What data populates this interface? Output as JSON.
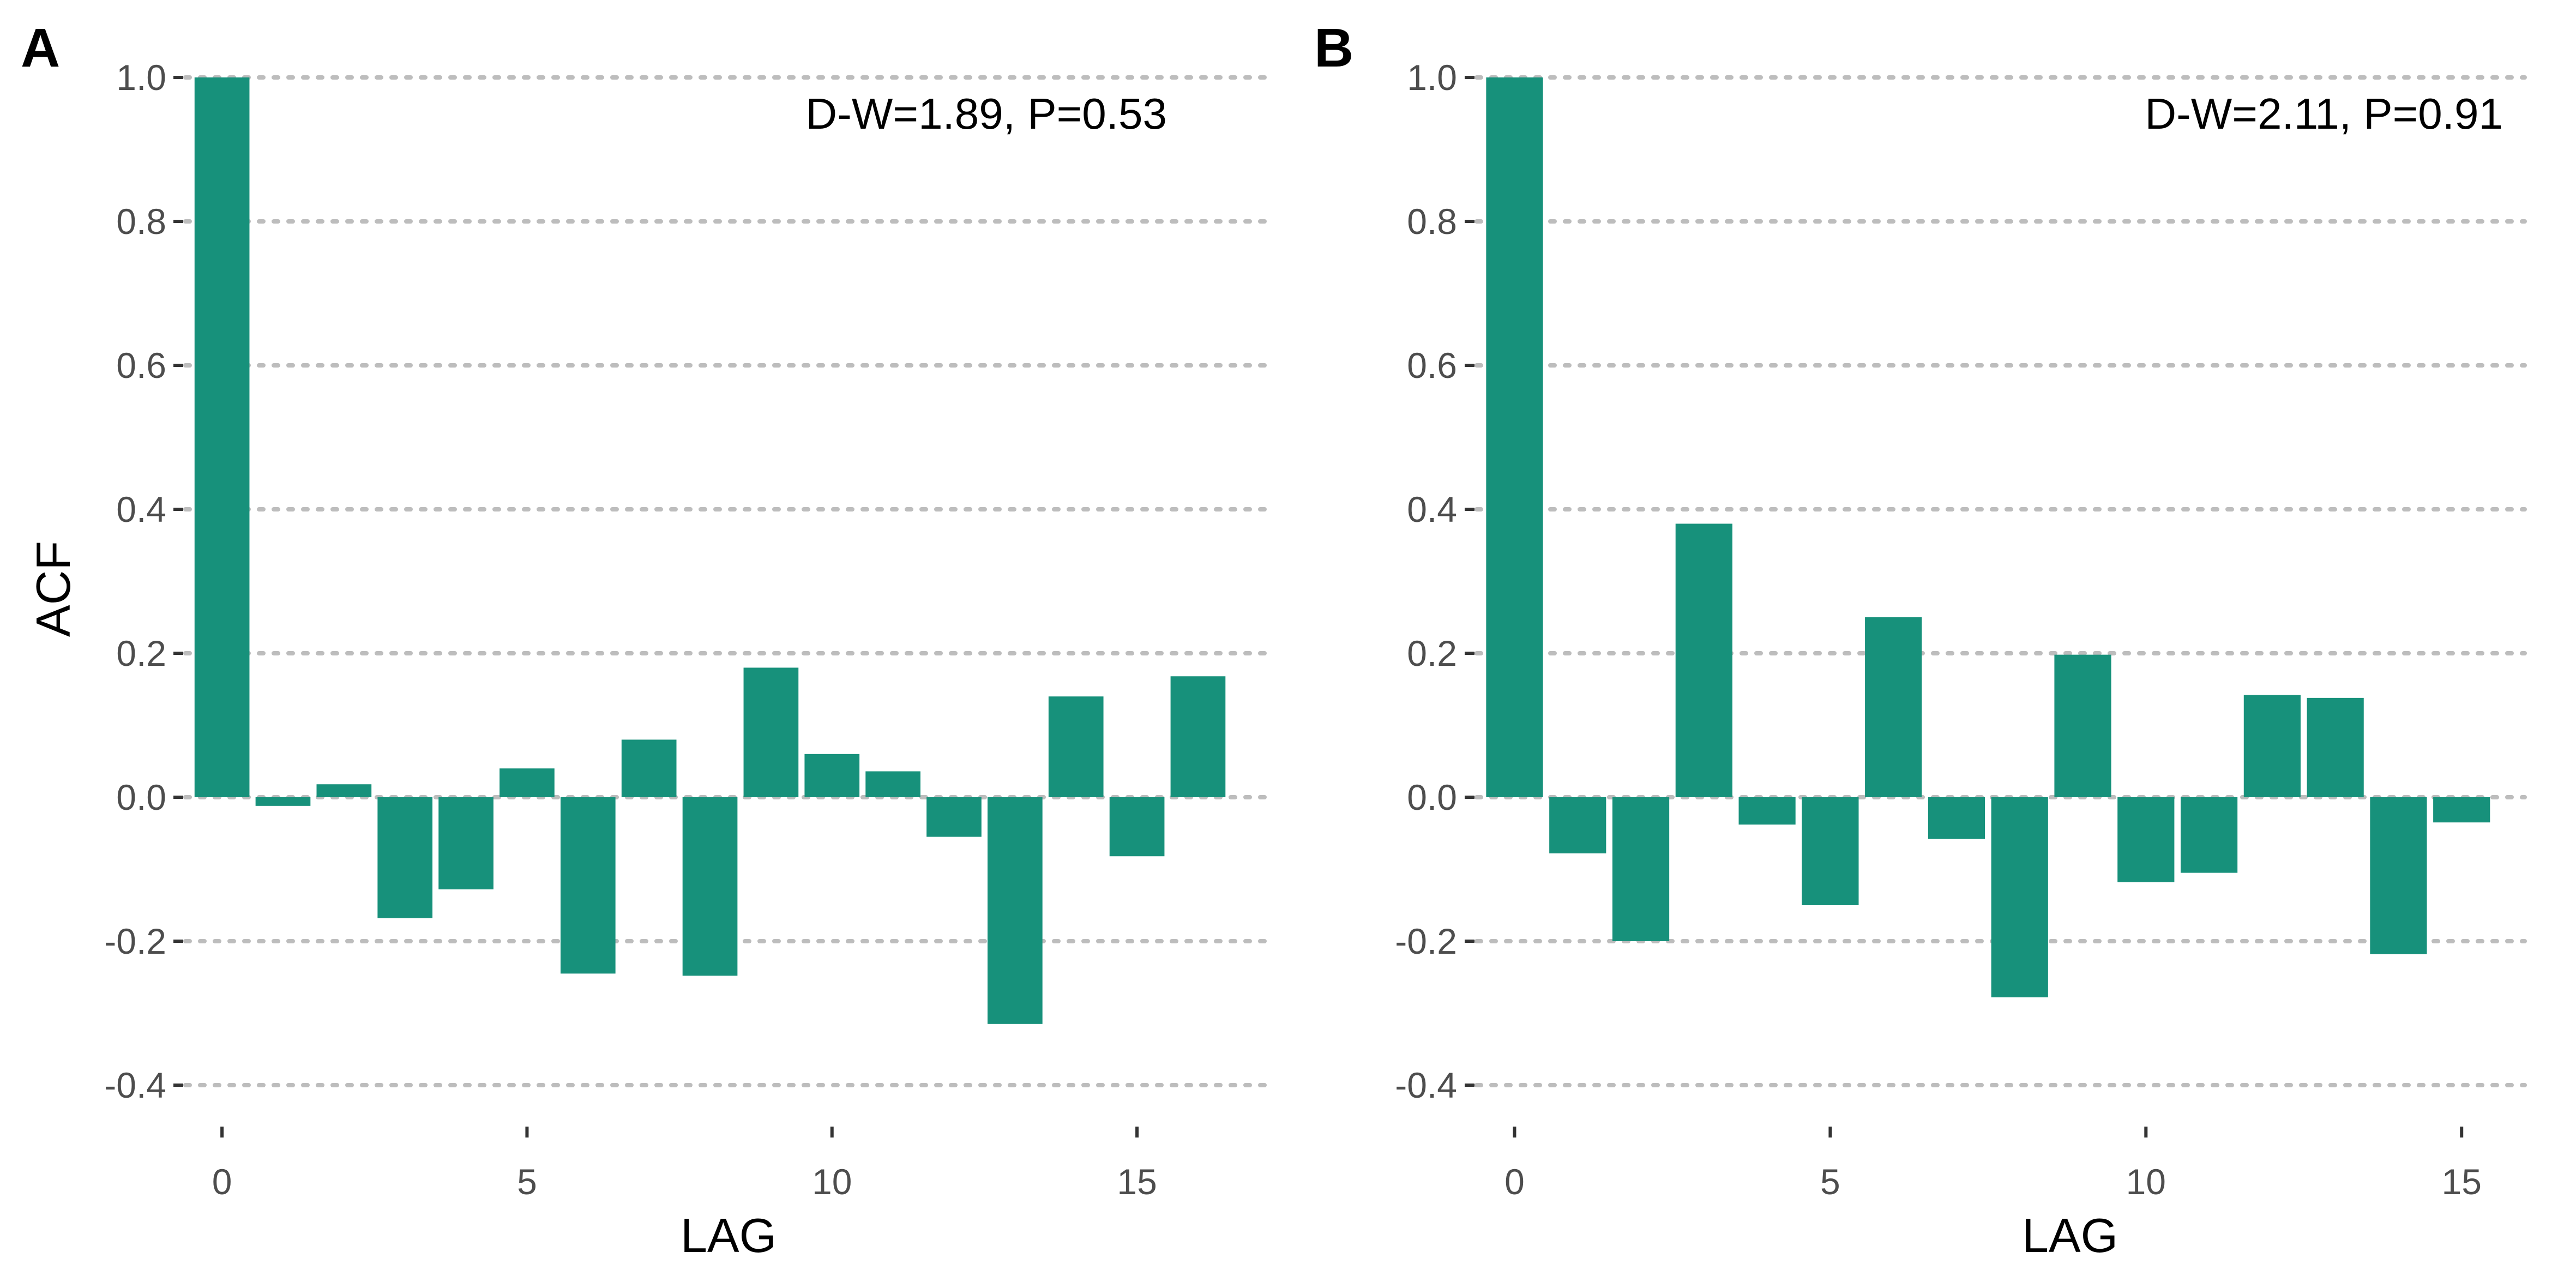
{
  "chart_data": [
    {
      "type": "bar",
      "panel_label": "A",
      "annotation": "D-W=1.89, P=0.53",
      "xlabel": "LAG",
      "ylabel": "ACF",
      "x": [
        0,
        1,
        2,
        3,
        4,
        5,
        6,
        7,
        8,
        9,
        10,
        11,
        12,
        13,
        14,
        15,
        16
      ],
      "values": [
        1.0,
        -0.012,
        0.018,
        -0.168,
        -0.128,
        0.04,
        -0.245,
        0.08,
        -0.248,
        0.18,
        0.06,
        0.036,
        -0.055,
        -0.315,
        0.14,
        -0.082,
        0.168
      ],
      "xlim": [
        -0.6,
        17.1
      ],
      "ylim": [
        -0.4,
        1.0
      ],
      "xticks": [
        0,
        5,
        10,
        15
      ],
      "yticks": [
        -0.4,
        -0.2,
        0.0,
        0.2,
        0.4,
        0.6,
        0.8,
        1.0
      ],
      "ytick_labels": [
        "-0.4",
        "-0.2",
        "0.0",
        "0.2",
        "0.4",
        "0.6",
        "0.8",
        "1.0"
      ],
      "grid": "horizontal dotted",
      "bar_color": "#17917b"
    },
    {
      "type": "bar",
      "panel_label": "B",
      "annotation": "D-W=2.11, P=0.91",
      "xlabel": "LAG",
      "ylabel": "",
      "x": [
        0,
        1,
        2,
        3,
        4,
        5,
        6,
        7,
        8,
        9,
        10,
        11,
        12,
        13,
        14,
        15
      ],
      "values": [
        1.0,
        -0.078,
        -0.2,
        0.38,
        -0.038,
        -0.15,
        0.25,
        -0.058,
        -0.278,
        0.198,
        -0.118,
        -0.105,
        0.142,
        0.138,
        -0.218,
        -0.035
      ],
      "xlim": [
        -0.6,
        16.0
      ],
      "ylim": [
        -0.4,
        1.0
      ],
      "xticks": [
        0,
        5,
        10,
        15
      ],
      "yticks": [
        -0.4,
        -0.2,
        0.0,
        0.2,
        0.4,
        0.6,
        0.8,
        1.0
      ],
      "ytick_labels": [
        "-0.4",
        "-0.2",
        "0.0",
        "0.2",
        "0.4",
        "0.6",
        "0.8",
        "1.0"
      ],
      "grid": "horizontal dotted",
      "bar_color": "#17917b"
    }
  ]
}
